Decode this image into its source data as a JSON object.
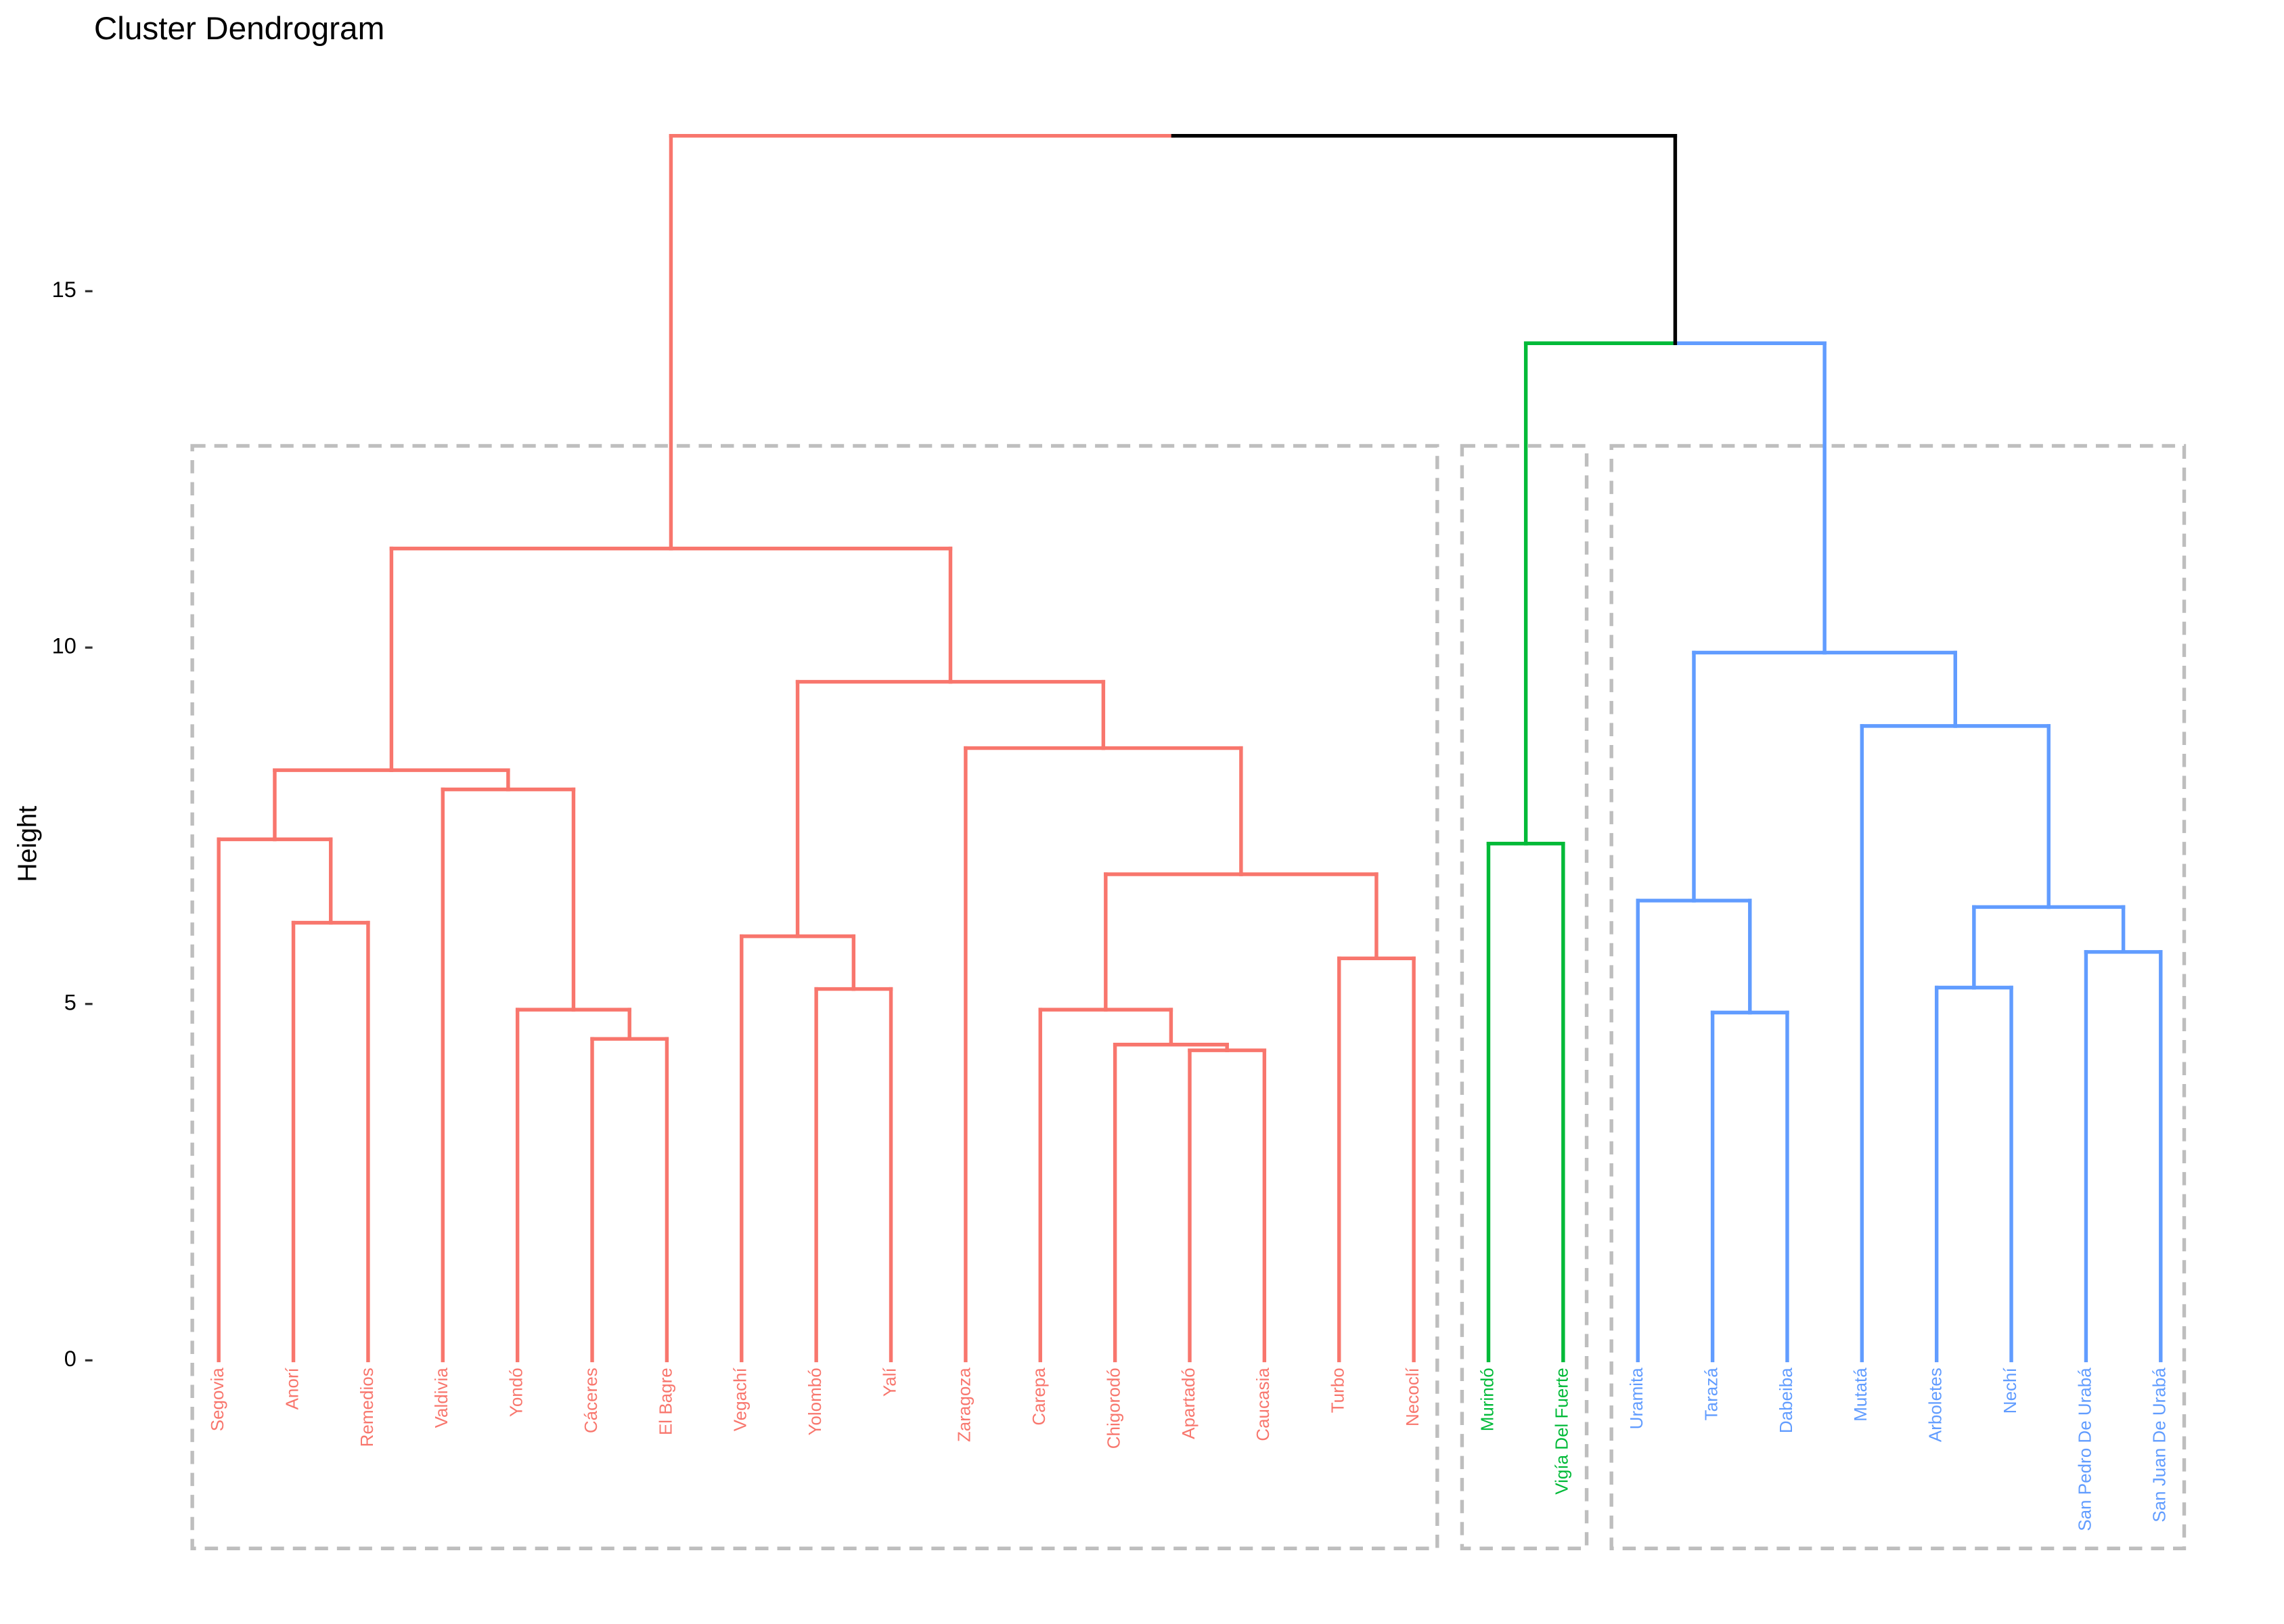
{
  "chart_data": {
    "type": "dendrogram",
    "title": "Cluster Dendrogram",
    "ylabel": "Height",
    "ylim": [
      -2.7,
      18.2
    ],
    "yticks": [
      0,
      5,
      10,
      15
    ],
    "branch_color": "#000000",
    "rect_color": "#BEBEBE",
    "clusters": [
      {
        "color": "#F8766D"
      },
      {
        "color": "#00BA38"
      },
      {
        "color": "#619CFF"
      }
    ],
    "leaves": [
      {
        "name": "Segovia",
        "cluster": 0
      },
      {
        "name": "Anorí",
        "cluster": 0
      },
      {
        "name": "Remedios",
        "cluster": 0
      },
      {
        "name": "Valdivia",
        "cluster": 0
      },
      {
        "name": "Yondó",
        "cluster": 0
      },
      {
        "name": "Cáceres",
        "cluster": 0
      },
      {
        "name": "El Bagre",
        "cluster": 0
      },
      {
        "name": "Vegachí",
        "cluster": 0
      },
      {
        "name": "Yolombó",
        "cluster": 0
      },
      {
        "name": "Yalí",
        "cluster": 0
      },
      {
        "name": "Zaragoza",
        "cluster": 0
      },
      {
        "name": "Carepa",
        "cluster": 0
      },
      {
        "name": "Chigorodó",
        "cluster": 0
      },
      {
        "name": "Apartadó",
        "cluster": 0
      },
      {
        "name": "Caucasia",
        "cluster": 0
      },
      {
        "name": "Turbo",
        "cluster": 0
      },
      {
        "name": "Necoclí",
        "cluster": 0
      },
      {
        "name": "Murindó",
        "cluster": 1
      },
      {
        "name": "Vigía Del Fuerte",
        "cluster": 1
      },
      {
        "name": "Uramita",
        "cluster": 2
      },
      {
        "name": "Tarazá",
        "cluster": 2
      },
      {
        "name": "Dabeiba",
        "cluster": 2
      },
      {
        "name": "Mutatá",
        "cluster": 2
      },
      {
        "name": "Arboletes",
        "cluster": 2
      },
      {
        "name": "Nechí",
        "cluster": 2
      },
      {
        "name": "San Pedro De Urabá",
        "cluster": 2
      },
      {
        "name": "San Juan De Urabá",
        "cluster": 2
      }
    ],
    "merges": [
      {
        "children": [
          -14,
          -15
        ],
        "height": 4.35
      },
      {
        "children": [
          -13,
          1
        ],
        "height": 4.43
      },
      {
        "children": [
          -6,
          -7
        ],
        "height": 4.51
      },
      {
        "children": [
          -21,
          -22
        ],
        "height": 4.88
      },
      {
        "children": [
          -5,
          3
        ],
        "height": 4.92
      },
      {
        "children": [
          -12,
          2
        ],
        "height": 4.92
      },
      {
        "children": [
          -9,
          -10
        ],
        "height": 5.21
      },
      {
        "children": [
          -24,
          -25
        ],
        "height": 5.23
      },
      {
        "children": [
          -16,
          -17
        ],
        "height": 5.64
      },
      {
        "children": [
          -26,
          -27
        ],
        "height": 5.73
      },
      {
        "children": [
          -8,
          7
        ],
        "height": 5.95
      },
      {
        "children": [
          -2,
          -3
        ],
        "height": 6.14
      },
      {
        "children": [
          8,
          10
        ],
        "height": 6.36
      },
      {
        "children": [
          -20,
          4
        ],
        "height": 6.45
      },
      {
        "children": [
          6,
          9
        ],
        "height": 6.82
      },
      {
        "children": [
          -18,
          -19
        ],
        "height": 7.25
      },
      {
        "children": [
          -1,
          12
        ],
        "height": 7.31
      },
      {
        "children": [
          -4,
          5
        ],
        "height": 8.01
      },
      {
        "children": [
          17,
          18
        ],
        "height": 8.28
      },
      {
        "children": [
          -11,
          15
        ],
        "height": 8.59
      },
      {
        "children": [
          -23,
          13
        ],
        "height": 8.9
      },
      {
        "children": [
          11,
          20
        ],
        "height": 9.52
      },
      {
        "children": [
          14,
          21
        ],
        "height": 9.93
      },
      {
        "children": [
          19,
          22
        ],
        "height": 11.39
      },
      {
        "children": [
          16,
          23
        ],
        "height": 14.27
      },
      {
        "children": [
          24,
          25
        ],
        "height": 17.18
      }
    ]
  }
}
